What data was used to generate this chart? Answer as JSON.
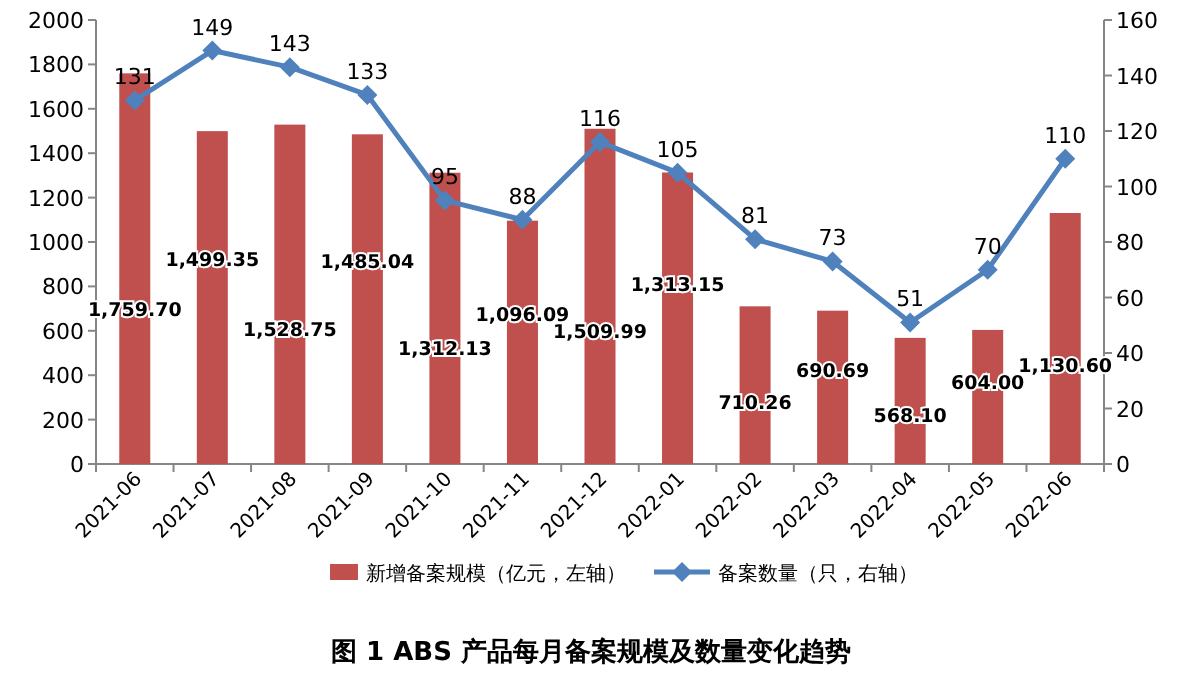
{
  "chart_data": {
    "type": "bar",
    "title": "图 1  ABS 产品每月备案规模及数量变化趋势",
    "categories": [
      "2021-06",
      "2021-07",
      "2021-08",
      "2021-09",
      "2021-10",
      "2021-11",
      "2021-12",
      "2022-01",
      "2022-02",
      "2022-03",
      "2022-04",
      "2022-05",
      "2022-06"
    ],
    "series": [
      {
        "name": "新增备案规模（亿元，左轴）",
        "color": "#c0504d",
        "values": [
          1759.7,
          1499.35,
          1528.75,
          1485.04,
          1312.13,
          1096.09,
          1509.99,
          1313.15,
          710.26,
          690.69,
          568.1,
          604.0,
          1130.6
        ],
        "value_labels": [
          "1,759.70",
          "1,499.35",
          "1,528.75",
          "1,485.04",
          "1,312.13",
          "1,096.09",
          "1,509.99",
          "1,313.15",
          "710.26",
          "690.69",
          "568.10",
          "604.00",
          "1,130.60"
        ]
      },
      {
        "name": "备案数量（只，右轴）",
        "type": "line",
        "axis": "y2",
        "color": "#4f81bd",
        "marker": "diamond",
        "values": [
          131,
          149,
          143,
          133,
          95,
          88,
          116,
          105,
          81,
          73,
          51,
          70,
          110
        ],
        "value_labels": [
          "131",
          "149",
          "143",
          "133",
          "95",
          "88",
          "116",
          "105",
          "81",
          "73",
          "51",
          "70",
          "110"
        ]
      }
    ],
    "ylim": [
      0,
      2000
    ],
    "yticks": [
      0,
      200,
      400,
      600,
      800,
      1000,
      1200,
      1400,
      1600,
      1800,
      2000
    ],
    "y2lim": [
      0,
      160
    ],
    "y2ticks": [
      0,
      20,
      40,
      60,
      80,
      100,
      120,
      140,
      160
    ],
    "legend": "bottom",
    "grid": false
  }
}
